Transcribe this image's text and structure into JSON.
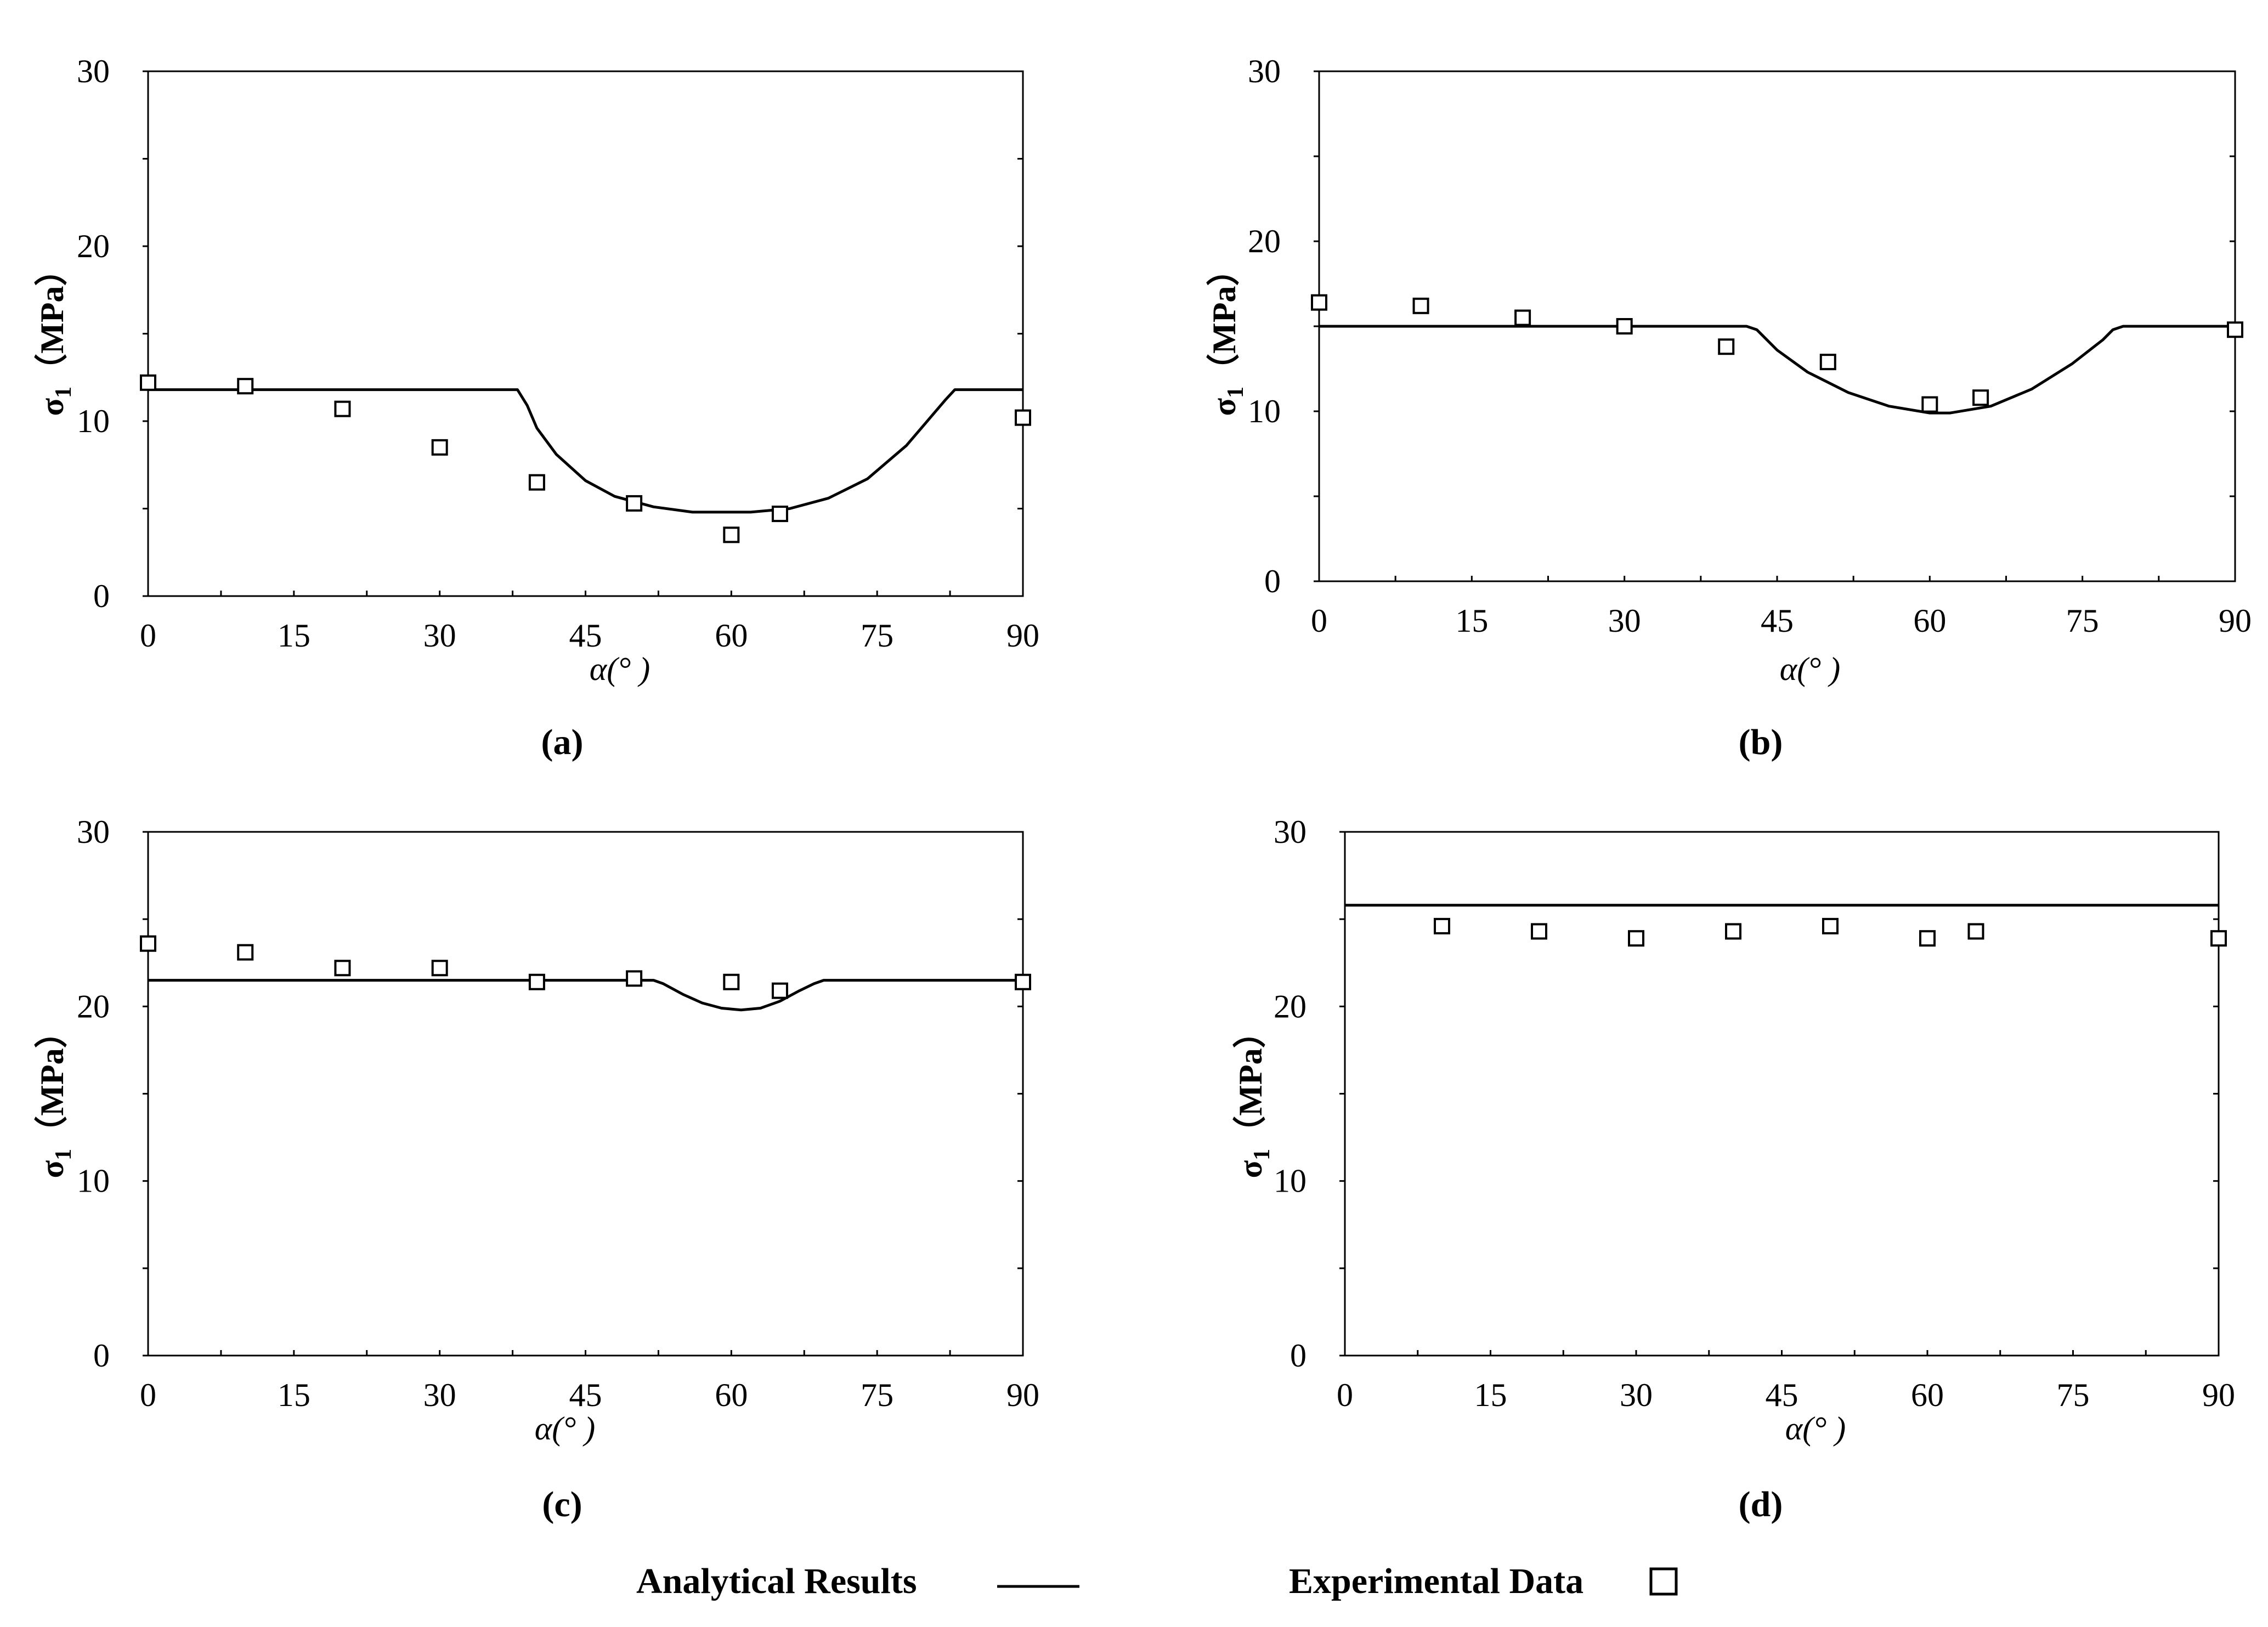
{
  "chart_data": [
    {
      "type": "line",
      "panel_label": "(a)",
      "xlabel": "α(°  )",
      "ylabel_main": "σ",
      "ylabel_sub": "1",
      "ylabel_unit": "（MPa）",
      "xlim": [
        0,
        90
      ],
      "ylim": [
        0,
        30
      ],
      "xticks": [
        0,
        15,
        30,
        45,
        60,
        75,
        90
      ],
      "yticks": [
        0,
        10,
        20,
        30
      ],
      "series": [
        {
          "name": "Analytical Results",
          "kind": "line",
          "x": [
            0,
            38,
            39,
            40,
            42,
            45,
            48,
            52,
            56,
            60,
            62,
            66,
            70,
            74,
            78,
            80,
            82,
            83,
            84,
            90
          ],
          "y": [
            11.8,
            11.8,
            10.9,
            9.6,
            8.1,
            6.6,
            5.7,
            5.1,
            4.8,
            4.8,
            4.8,
            5.0,
            5.6,
            6.7,
            8.6,
            9.9,
            11.2,
            11.8,
            11.8,
            11.8
          ]
        },
        {
          "name": "Experimental Data",
          "kind": "marker",
          "x": [
            0,
            10,
            20,
            30,
            40,
            50,
            60,
            65,
            90
          ],
          "y": [
            12.2,
            12.0,
            10.7,
            8.5,
            6.5,
            5.3,
            3.5,
            4.7,
            10.2
          ]
        }
      ]
    },
    {
      "type": "line",
      "panel_label": "(b)",
      "xlabel": "α(°  )",
      "ylabel_main": "σ",
      "ylabel_sub": "1",
      "ylabel_unit": "（MPa）",
      "xlim": [
        0,
        90
      ],
      "ylim": [
        0,
        30
      ],
      "xticks": [
        0,
        15,
        30,
        45,
        60,
        75,
        90
      ],
      "yticks": [
        0,
        10,
        20,
        30
      ],
      "series": [
        {
          "name": "Analytical Results",
          "kind": "line",
          "x": [
            0,
            42,
            43,
            45,
            48,
            52,
            56,
            60,
            62,
            66,
            70,
            74,
            77,
            78,
            79,
            90
          ],
          "y": [
            15.0,
            15.0,
            14.8,
            13.6,
            12.3,
            11.1,
            10.3,
            9.9,
            9.9,
            10.3,
            11.3,
            12.8,
            14.2,
            14.8,
            15.0,
            15.0
          ]
        },
        {
          "name": "Experimental Data",
          "kind": "marker",
          "x": [
            0,
            10,
            20,
            30,
            40,
            50,
            60,
            65,
            90
          ],
          "y": [
            16.4,
            16.2,
            15.5,
            15.0,
            13.8,
            12.9,
            10.4,
            10.8,
            14.8
          ]
        }
      ]
    },
    {
      "type": "line",
      "panel_label": "(c)",
      "xlabel": "α(°  )",
      "ylabel_main": "σ",
      "ylabel_sub": "1",
      "ylabel_unit": "（MPa）",
      "xlim": [
        0,
        90
      ],
      "ylim": [
        0,
        30
      ],
      "xticks": [
        0,
        15,
        30,
        45,
        60,
        75,
        90
      ],
      "yticks": [
        0,
        10,
        20,
        30
      ],
      "series": [
        {
          "name": "Analytical Results",
          "kind": "line",
          "x": [
            0,
            52,
            53,
            55,
            57,
            59,
            61,
            63,
            65,
            67,
            68.5,
            69.5,
            70,
            90
          ],
          "y": [
            21.5,
            21.5,
            21.3,
            20.7,
            20.2,
            19.9,
            19.8,
            19.9,
            20.3,
            20.9,
            21.3,
            21.5,
            21.5,
            21.5
          ]
        },
        {
          "name": "Experimental Data",
          "kind": "marker",
          "x": [
            0,
            10,
            20,
            30,
            40,
            50,
            60,
            65,
            90
          ],
          "y": [
            23.6,
            23.1,
            22.2,
            22.2,
            21.4,
            21.6,
            21.4,
            20.9,
            21.4
          ]
        }
      ]
    },
    {
      "type": "line",
      "panel_label": "(d)",
      "xlabel": "α(°  )",
      "ylabel_main": "σ",
      "ylabel_sub": "1",
      "ylabel_unit": "（MPa）",
      "xlim": [
        0,
        90
      ],
      "ylim": [
        0,
        30
      ],
      "xticks": [
        0,
        15,
        30,
        45,
        60,
        75,
        90
      ],
      "yticks": [
        0,
        10,
        20,
        30
      ],
      "series": [
        {
          "name": "Analytical Results",
          "kind": "line",
          "x": [
            0,
            90
          ],
          "y": [
            25.8,
            25.8
          ]
        },
        {
          "name": "Experimental Data",
          "kind": "marker",
          "x": [
            10,
            20,
            30,
            40,
            50,
            60,
            65,
            90
          ],
          "y": [
            24.6,
            24.3,
            23.9,
            24.3,
            24.6,
            23.9,
            24.3,
            23.9
          ]
        }
      ]
    }
  ],
  "legend": {
    "line_label": "Analytical Results",
    "marker_label": "Experimental Data"
  }
}
